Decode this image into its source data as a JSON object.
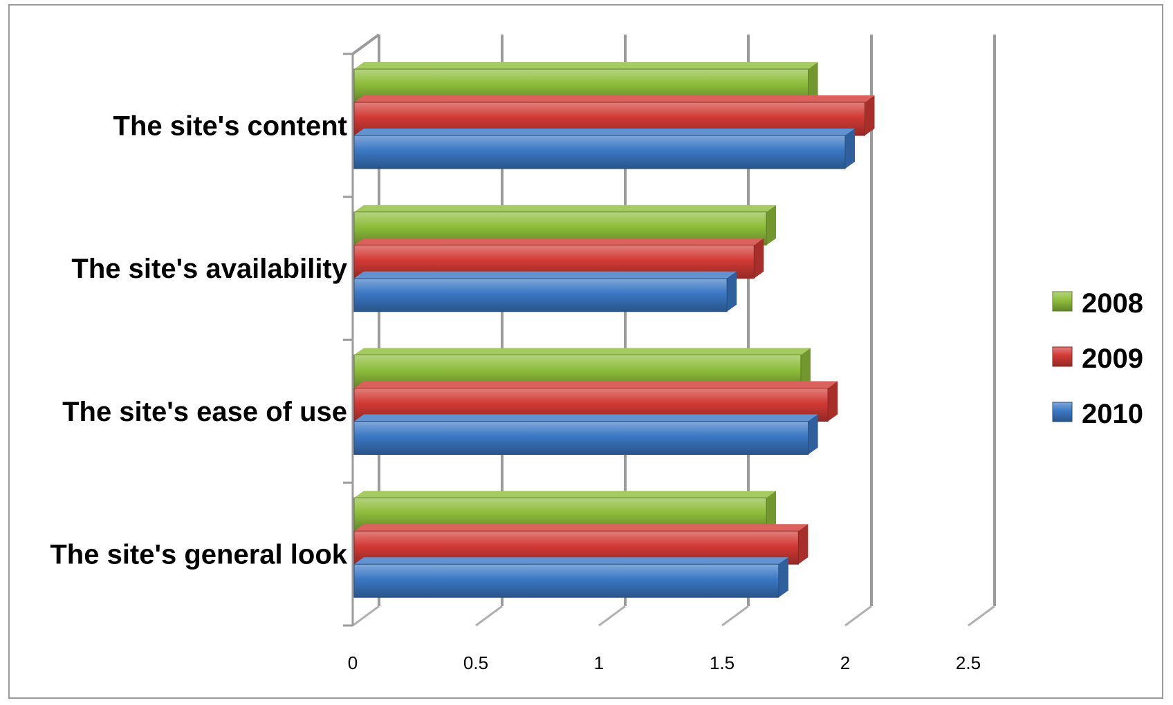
{
  "chart_data": {
    "type": "bar",
    "orientation": "horizontal",
    "style": "3d-clustered",
    "categories": [
      "The site's content",
      "The site's availability",
      "The site's ease of use",
      "The site's general look"
    ],
    "series": [
      {
        "name": "2008",
        "color": "#8dbd3a",
        "values": [
          1.85,
          1.68,
          1.82,
          1.68
        ]
      },
      {
        "name": "2009",
        "color": "#d23a35",
        "values": [
          2.08,
          1.63,
          1.93,
          1.81
        ]
      },
      {
        "name": "2010",
        "color": "#3b78c4",
        "values": [
          2.0,
          1.52,
          1.85,
          1.73
        ]
      }
    ],
    "xlim": [
      0,
      2.5
    ],
    "xticks": [
      "0",
      "0.5",
      "1",
      "1.5",
      "2",
      "2.5"
    ],
    "grid": true,
    "legend_position": "right"
  }
}
